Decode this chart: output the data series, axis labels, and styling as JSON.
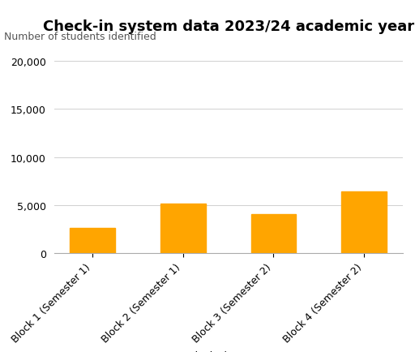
{
  "title": "Check-in system data 2023/24 academic year",
  "ylabel": "Number of students identified",
  "xlabel": "Blocks in a Year",
  "categories": [
    "Block 1 (Semester 1)",
    "Block 2 (Semester 1)",
    "Block 3 (Semester 2)",
    "Block 4 (Semester 2)"
  ],
  "values": [
    2600,
    5150,
    4100,
    6450
  ],
  "bar_color": "#FFA500",
  "ylim": [
    0,
    22000
  ],
  "yticks": [
    0,
    5000,
    10000,
    15000,
    20000
  ],
  "background_color": "#ffffff",
  "title_fontsize": 13,
  "label_fontsize": 9,
  "tick_fontsize": 9,
  "grid_color": "#d0d0d0",
  "bar_width": 0.5
}
